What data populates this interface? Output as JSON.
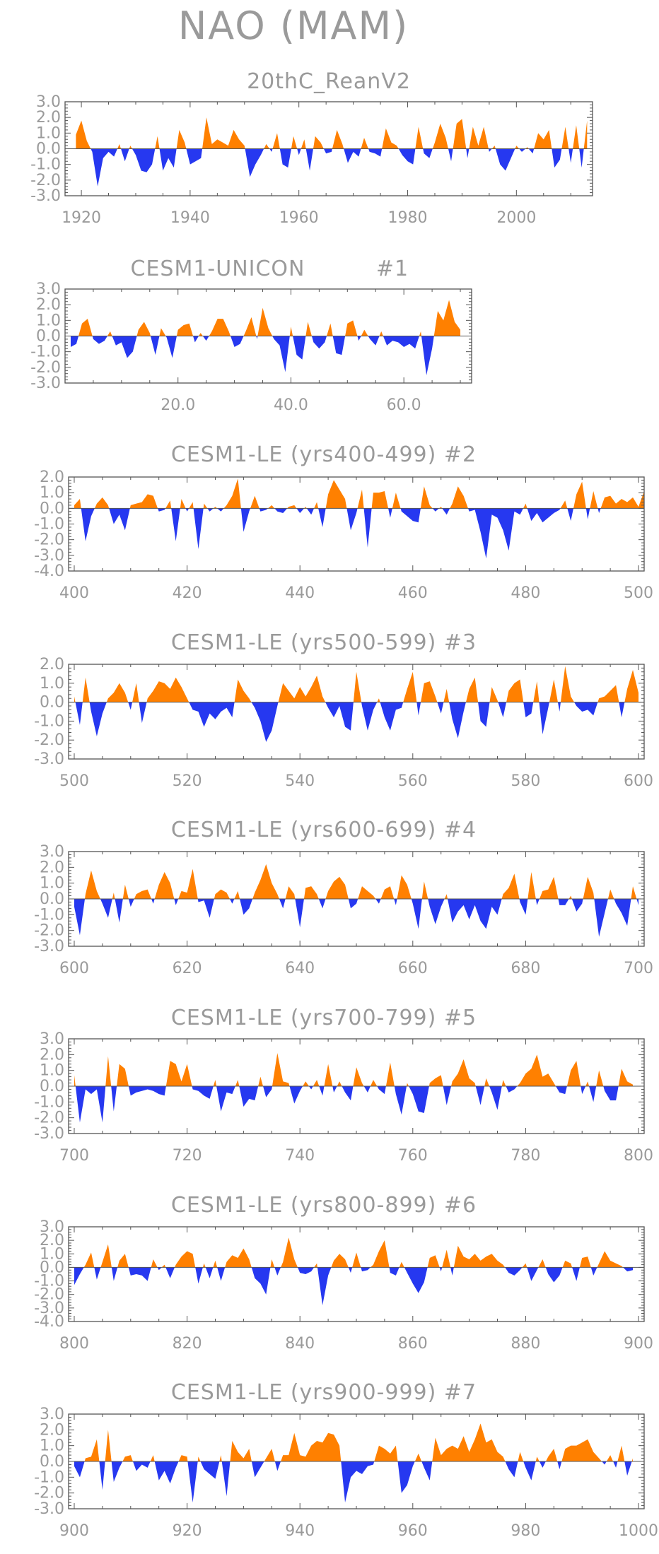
{
  "page": {
    "title": "NAO (MAM)"
  },
  "colors": {
    "positive": "#ff8000",
    "negative": "#2638f0",
    "axis": "#555555",
    "text": "#9a9a9a"
  },
  "chart_data": [
    {
      "type": "area",
      "title": "20thC_ReanV2",
      "suffix": "",
      "xlim": [
        1917,
        2014
      ],
      "ylim": [
        -3.0,
        3.0
      ],
      "xticks": [
        1920,
        1940,
        1960,
        1980,
        2000
      ],
      "xtick_labels": [
        "1920",
        "1940",
        "1960",
        "1980",
        "2000"
      ],
      "yticks": [
        3.0,
        2.0,
        1.0,
        0.0,
        -1.0,
        -2.0,
        -3.0
      ],
      "ytick_labels": [
        "3.0",
        "2.0",
        "1.0",
        "0.0",
        "-1.0",
        "-2.0",
        "-3.0"
      ],
      "x_start": 1919,
      "values": [
        0.9,
        1.8,
        0.5,
        -0.2,
        -2.4,
        -0.6,
        -0.2,
        -0.5,
        0.3,
        -0.8,
        0.2,
        -0.4,
        -1.4,
        -1.5,
        -1.0,
        0.8,
        -1.4,
        -0.6,
        -1.2,
        1.2,
        0.4,
        -1.0,
        -0.8,
        -0.6,
        2.0,
        0.3,
        0.6,
        0.4,
        0.2,
        1.2,
        0.6,
        0.2,
        -1.8,
        -1.0,
        -0.4,
        0.3,
        -0.2,
        1.0,
        -1.0,
        -1.2,
        0.8,
        -0.4,
        0.6,
        -1.4,
        0.8,
        0.4,
        -0.3,
        -0.2,
        1.2,
        0.3,
        -0.9,
        -0.2,
        -0.5,
        0.7,
        -0.2,
        -0.3,
        -0.5,
        1.3,
        0.4,
        0.2,
        -0.4,
        -0.8,
        -1.0,
        1.4,
        -0.3,
        -0.6,
        0.4,
        1.6,
        0.7,
        -0.8,
        1.6,
        1.9,
        -0.6,
        1.4,
        0.2,
        1.4,
        -0.2,
        0.2,
        -1.0,
        -1.4,
        -0.6,
        0.2,
        -0.2,
        0.1,
        -0.3,
        1.0,
        0.6,
        1.2,
        -1.2,
        -0.7,
        1.4,
        -0.9,
        1.5,
        -1.2,
        1.8
      ]
    },
    {
      "type": "area",
      "title": "CESM1-UNICON",
      "suffix": "#1",
      "xlim": [
        0,
        72
      ],
      "ylim": [
        -3.0,
        3.0
      ],
      "xticks": [
        20,
        40,
        60
      ],
      "xtick_labels": [
        "20.0",
        "40.0",
        "60.0"
      ],
      "yticks": [
        3.0,
        2.0,
        1.0,
        0.0,
        -1.0,
        -2.0,
        -3.0
      ],
      "ytick_labels": [
        "3.0",
        "2.0",
        "1.0",
        "0.0",
        "-1.0",
        "-2.0",
        "-3.0"
      ],
      "x_start": 1,
      "values": [
        -0.7,
        -0.5,
        0.8,
        1.1,
        -0.2,
        -0.5,
        -0.3,
        0.3,
        -0.6,
        -0.4,
        -1.4,
        -1.0,
        0.4,
        0.9,
        0.2,
        -1.2,
        0.5,
        -0.1,
        -1.4,
        0.4,
        0.7,
        0.8,
        -0.4,
        0.2,
        -0.3,
        0.3,
        1.1,
        1.1,
        0.3,
        -0.7,
        -0.5,
        0.3,
        1.2,
        -0.2,
        1.8,
        0.5,
        -0.2,
        -0.6,
        -2.3,
        0.6,
        -1.2,
        -1.5,
        0.9,
        -0.4,
        -0.8,
        -0.4,
        0.8,
        -1.1,
        -1.2,
        0.8,
        1.0,
        -0.3,
        0.4,
        -0.2,
        -0.6,
        0.3,
        -0.6,
        -0.3,
        -0.4,
        -0.7,
        -0.5,
        -0.8,
        0.3,
        -2.5,
        -0.8,
        1.6,
        1.0,
        2.3,
        0.9,
        0.4
      ]
    },
    {
      "type": "area",
      "title": "CESM1-LE (yrs400-499)",
      "suffix": "#2",
      "xlim": [
        399,
        501
      ],
      "ylim": [
        -4.0,
        2.0
      ],
      "xticks": [
        400,
        420,
        440,
        460,
        480,
        500
      ],
      "xtick_labels": [
        "400",
        "420",
        "440",
        "460",
        "480",
        "500"
      ],
      "yticks": [
        2.0,
        1.0,
        0.0,
        -1.0,
        -2.0,
        -3.0,
        -4.0
      ],
      "ytick_labels": [
        "2.0",
        "1.0",
        "0.0",
        "-1.0",
        "-2.0",
        "-3.0",
        "-4.0"
      ],
      "x_start": 400,
      "values": [
        0.2,
        0.6,
        -2.1,
        -0.5,
        0.3,
        0.7,
        0.2,
        -1.0,
        -0.4,
        -1.4,
        0.2,
        0.3,
        0.4,
        0.9,
        0.8,
        -0.2,
        -0.1,
        0.5,
        -2.1,
        0.6,
        -0.2,
        0.4,
        -2.6,
        0.3,
        -0.2,
        0.1,
        -0.2,
        0.2,
        0.8,
        1.9,
        -1.5,
        -0.2,
        0.8,
        -0.2,
        -0.1,
        0.2,
        -0.2,
        -0.3,
        0.1,
        0.2,
        -0.3,
        0.1,
        -0.4,
        0.4,
        -1.2,
        0.9,
        1.8,
        1.2,
        0.6,
        -1.4,
        -0.3,
        1.2,
        -2.5,
        1.0,
        1.0,
        1.1,
        -0.6,
        1.0,
        -0.2,
        -0.5,
        -0.8,
        -0.9,
        1.4,
        0.2,
        -0.2,
        0.1,
        -0.4,
        0.3,
        1.4,
        0.8,
        -0.2,
        -0.1,
        -1.5,
        -3.2,
        -0.4,
        -0.6,
        -1.4,
        -2.7,
        -0.2,
        -0.4,
        0.3,
        -0.8,
        -0.3,
        -0.9,
        -0.6,
        -0.3,
        -0.1,
        0.5,
        -0.8,
        0.9,
        1.7,
        -0.7,
        1.1,
        -0.3,
        0.7,
        0.8,
        0.3,
        0.6,
        0.4,
        0.7,
        0.1,
        1.1
      ]
    },
    {
      "type": "area",
      "title": "CESM1-LE (yrs500-599)",
      "suffix": "#3",
      "xlim": [
        499,
        601
      ],
      "ylim": [
        -3.0,
        2.0
      ],
      "xticks": [
        500,
        520,
        540,
        560,
        580,
        600
      ],
      "xtick_labels": [
        "500",
        "520",
        "540",
        "560",
        "580",
        "600"
      ],
      "yticks": [
        2.0,
        1.0,
        0.0,
        -1.0,
        -2.0,
        -3.0
      ],
      "ytick_labels": [
        "2.0",
        "1.0",
        "0.0",
        "-1.0",
        "-2.0",
        "-3.0"
      ],
      "x_start": 500,
      "values": [
        0.3,
        -1.2,
        1.3,
        -0.5,
        -1.8,
        -0.6,
        0.2,
        0.5,
        1.0,
        0.5,
        -0.4,
        1.0,
        -1.1,
        0.2,
        0.6,
        1.1,
        1.0,
        0.7,
        1.3,
        0.8,
        0.2,
        -0.4,
        -0.5,
        -1.3,
        -0.6,
        -0.9,
        -0.5,
        -0.3,
        -0.8,
        1.2,
        0.6,
        0.2,
        -0.3,
        -1.0,
        -2.1,
        -1.5,
        -0.2,
        1.0,
        0.6,
        0.2,
        0.8,
        0.3,
        0.8,
        1.4,
        0.3,
        -0.3,
        -0.8,
        -0.2,
        -1.3,
        -1.5,
        1.6,
        -0.2,
        -1.5,
        -0.4,
        0.2,
        -0.8,
        -1.5,
        -0.4,
        -0.3,
        0.7,
        1.6,
        -0.7,
        1.0,
        1.1,
        0.3,
        -0.6,
        0.7,
        -0.9,
        -1.9,
        -0.5,
        0.7,
        1.3,
        -1.0,
        -1.3,
        0.8,
        0.1,
        -0.8,
        0.6,
        1.0,
        1.2,
        -0.8,
        -0.6,
        1.1,
        -1.7,
        -0.3,
        1.2,
        -0.5,
        1.9,
        0.3,
        -0.2,
        -0.5,
        -0.4,
        -0.7,
        0.2,
        0.3,
        0.6,
        0.9,
        -0.8,
        0.7,
        1.7,
        0.5
      ]
    },
    {
      "type": "area",
      "title": "CESM1-LE (yrs600-699)",
      "suffix": "#4",
      "xlim": [
        599,
        701
      ],
      "ylim": [
        -3.0,
        3.0
      ],
      "xticks": [
        600,
        620,
        640,
        660,
        680,
        700
      ],
      "xtick_labels": [
        "600",
        "620",
        "640",
        "660",
        "680",
        "700"
      ],
      "yticks": [
        3.0,
        2.0,
        1.0,
        0.0,
        -1.0,
        -2.0,
        -3.0
      ],
      "ytick_labels": [
        "3.0",
        "2.0",
        "1.0",
        "0.0",
        "-1.0",
        "-2.0",
        "-3.0"
      ],
      "x_start": 600,
      "values": [
        -0.5,
        -2.3,
        0.3,
        1.8,
        0.5,
        -0.3,
        -1.2,
        0.4,
        -1.5,
        0.9,
        -0.5,
        0.3,
        0.5,
        0.6,
        -0.3,
        0.9,
        1.7,
        1.0,
        -0.4,
        0.5,
        0.4,
        1.9,
        -0.2,
        -0.1,
        -1.2,
        0.3,
        0.6,
        0.4,
        -0.3,
        0.5,
        -1.0,
        -0.6,
        0.4,
        1.2,
        2.2,
        1.0,
        0.3,
        -0.6,
        0.8,
        0.3,
        -1.8,
        0.7,
        0.8,
        0.3,
        -0.6,
        0.5,
        1.1,
        1.4,
        0.9,
        -0.6,
        -0.3,
        0.8,
        0.5,
        0.2,
        -0.3,
        0.6,
        0.8,
        -0.4,
        1.5,
        0.9,
        -0.3,
        -1.9,
        1.1,
        -0.5,
        -1.6,
        -0.5,
        0.3,
        -1.5,
        -0.8,
        -0.4,
        -1.3,
        -0.4,
        -1.4,
        -1.9,
        -0.5,
        -1.0,
        0.3,
        0.7,
        1.6,
        -0.2,
        -1.0,
        1.7,
        -0.4,
        0.5,
        0.6,
        1.4,
        -0.4,
        -0.4,
        0.2,
        -0.8,
        -0.3,
        1.4,
        0.4,
        -2.4,
        -0.9,
        0.6,
        -0.3,
        -0.9,
        -1.7,
        0.8,
        -0.4
      ]
    },
    {
      "type": "area",
      "title": "CESM1-LE (yrs700-799)",
      "suffix": "#5",
      "xlim": [
        699,
        801
      ],
      "ylim": [
        -3.0,
        3.0
      ],
      "xticks": [
        700,
        720,
        740,
        760,
        780,
        800
      ],
      "xtick_labels": [
        "700",
        "720",
        "740",
        "760",
        "780",
        "800"
      ],
      "yticks": [
        3.0,
        2.0,
        1.0,
        0.0,
        -1.0,
        -2.0,
        -3.0
      ],
      "ytick_labels": [
        "3.0",
        "2.0",
        "1.0",
        "0.0",
        "-1.0",
        "-2.0",
        "-3.0"
      ],
      "x_start": 700,
      "values": [
        0.7,
        -2.3,
        -0.2,
        -0.5,
        -0.2,
        -2.3,
        1.9,
        -1.6,
        1.4,
        1.1,
        -0.6,
        -0.4,
        -0.3,
        -0.2,
        -0.3,
        -0.5,
        -0.6,
        1.6,
        1.4,
        0.3,
        1.4,
        -0.2,
        -0.3,
        -0.6,
        -0.8,
        0.4,
        -1.6,
        -0.4,
        -0.5,
        0.4,
        -1.3,
        -0.8,
        -0.9,
        0.6,
        -0.7,
        -0.2,
        2.1,
        0.3,
        0.2,
        -1.1,
        -0.3,
        0.3,
        -0.2,
        0.4,
        -0.6,
        1.4,
        -0.4,
        0.3,
        -0.4,
        -0.9,
        1.2,
        0.2,
        -0.4,
        0.4,
        -0.2,
        -0.5,
        1.5,
        -0.5,
        -1.8,
        0.2,
        -0.5,
        -1.6,
        -1.7,
        0.2,
        0.5,
        0.7,
        -1.2,
        0.3,
        0.8,
        1.7,
        0.5,
        0.2,
        -1.2,
        0.5,
        -0.4,
        -1.5,
        0.4,
        -0.4,
        -0.2,
        0.2,
        0.8,
        1.1,
        2.0,
        0.6,
        0.8,
        0.2,
        -0.4,
        -0.5,
        1.0,
        1.6,
        -0.5,
        0.3,
        -1.0,
        1.0,
        -0.3,
        -0.9,
        -0.9,
        1.1,
        0.3,
        0.1
      ]
    },
    {
      "type": "area",
      "title": "CESM1-LE (yrs800-899)",
      "suffix": "#6",
      "xlim": [
        799,
        901
      ],
      "ylim": [
        -4.0,
        3.0
      ],
      "xticks": [
        800,
        820,
        840,
        860,
        880,
        900
      ],
      "xtick_labels": [
        "800",
        "820",
        "840",
        "860",
        "880",
        "900"
      ],
      "yticks": [
        3.0,
        2.0,
        1.0,
        0.0,
        -1.0,
        -2.0,
        -3.0,
        -4.0
      ],
      "ytick_labels": [
        "3.0",
        "2.0",
        "1.0",
        "0.0",
        "-1.0",
        "-2.0",
        "-3.0",
        "-4.0"
      ],
      "x_start": 800,
      "values": [
        -1.3,
        -0.5,
        0.2,
        1.1,
        -0.9,
        0.4,
        1.7,
        -1.0,
        0.5,
        1.0,
        -0.6,
        -0.5,
        -0.6,
        -1.0,
        0.6,
        -0.2,
        0.2,
        -0.8,
        0.2,
        0.8,
        1.2,
        1.0,
        -1.2,
        0.3,
        -0.8,
        0.5,
        -1.0,
        0.4,
        0.9,
        0.7,
        1.4,
        0.6,
        -0.8,
        -1.2,
        -2.0,
        0.6,
        -0.6,
        0.4,
        2.2,
        0.6,
        -0.4,
        -0.5,
        -0.3,
        0.3,
        -2.8,
        -0.6,
        0.5,
        1.0,
        0.6,
        -0.4,
        1.1,
        -0.3,
        -0.2,
        0.2,
        1.2,
        2.0,
        -0.4,
        -0.6,
        0.4,
        -0.4,
        -1.2,
        -1.9,
        -1.1,
        0.7,
        0.9,
        -0.3,
        1.3,
        -0.6,
        1.6,
        0.8,
        0.6,
        1.0,
        0.5,
        0.8,
        1.0,
        0.5,
        0.2,
        -0.4,
        -0.6,
        -0.2,
        0.3,
        -1.0,
        -0.2,
        0.6,
        -0.5,
        -1.1,
        -0.6,
        0.5,
        0.3,
        -1.0,
        0.7,
        0.8,
        -0.6,
        0.3,
        1.2,
        0.5,
        0.3,
        0.1,
        -0.3,
        -0.2
      ]
    },
    {
      "type": "area",
      "title": "CESM1-LE (yrs900-999)",
      "suffix": "#7",
      "xlim": [
        899,
        1001
      ],
      "ylim": [
        -3.0,
        3.0
      ],
      "xticks": [
        900,
        920,
        940,
        960,
        980,
        1000
      ],
      "xtick_labels": [
        "900",
        "920",
        "940",
        "960",
        "980",
        "1000"
      ],
      "yticks": [
        3.0,
        2.0,
        1.0,
        0.0,
        -1.0,
        -2.0,
        -3.0
      ],
      "ytick_labels": [
        "3.0",
        "2.0",
        "1.0",
        "0.0",
        "-1.0",
        "-2.0",
        "-3.0"
      ],
      "x_start": 900,
      "values": [
        -0.3,
        -1.0,
        0.2,
        0.3,
        1.4,
        -1.8,
        2.0,
        -1.3,
        -0.4,
        0.3,
        0.4,
        -0.6,
        -0.2,
        -0.4,
        0.4,
        -1.2,
        -0.6,
        -1.4,
        -0.4,
        0.4,
        0.3,
        -2.6,
        0.3,
        -0.5,
        -0.8,
        -1.1,
        0.4,
        -2.2,
        1.3,
        0.6,
        0.2,
        0.8,
        -1.0,
        -0.4,
        0.2,
        0.8,
        -0.6,
        0.4,
        0.4,
        1.8,
        0.4,
        0.3,
        1.0,
        1.3,
        1.2,
        1.8,
        1.7,
        1.0,
        -2.6,
        -1.0,
        -0.6,
        -0.8,
        -0.3,
        -0.2,
        1.0,
        0.8,
        0.5,
        1.0,
        -2.0,
        -1.5,
        -0.3,
        0.5,
        -0.4,
        -1.2,
        1.5,
        0.4,
        0.8,
        1.0,
        0.8,
        1.6,
        0.6,
        1.4,
        2.4,
        1.2,
        1.4,
        0.6,
        0.3,
        -0.5,
        -1.0,
        0.6,
        -0.4,
        -1.2,
        0.3,
        -0.4,
        0.3,
        0.8,
        -0.5,
        0.8,
        1.0,
        1.0,
        1.2,
        1.4,
        0.6,
        0.2,
        -0.2,
        0.4,
        -0.4,
        1.0,
        -0.9,
        0.2
      ]
    }
  ]
}
